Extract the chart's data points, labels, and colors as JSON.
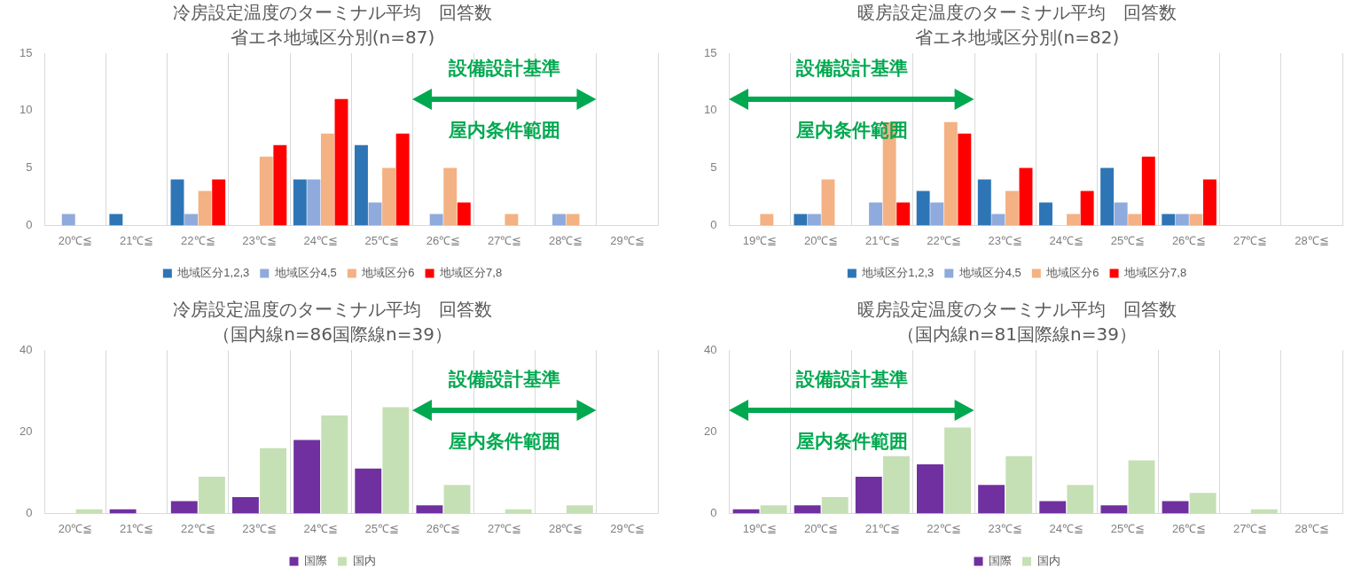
{
  "chart_data": [
    {
      "type": "bar",
      "title": "冷房設定温度のターミナル平均　回答数",
      "subtitle": "省エネ地域区分別(n=87)",
      "categories": [
        "20℃≦",
        "21℃≦",
        "22℃≦",
        "23℃≦",
        "24℃≦",
        "25℃≦",
        "26℃≦",
        "27℃≦",
        "28℃≦",
        "29℃≦"
      ],
      "series": [
        {
          "name": "地域区分1,2,3",
          "color": "#2e75b6",
          "values": [
            0,
            1,
            4,
            0,
            4,
            7,
            0,
            0,
            0,
            0
          ]
        },
        {
          "name": "地域区分4,5",
          "color": "#8faadc",
          "values": [
            1,
            0,
            1,
            0,
            4,
            2,
            1,
            0,
            1,
            0
          ]
        },
        {
          "name": "地域区分6",
          "color": "#f4b183",
          "values": [
            0,
            0,
            3,
            6,
            8,
            5,
            5,
            1,
            1,
            0
          ]
        },
        {
          "name": "地域区分7,8",
          "color": "#ff0000",
          "values": [
            0,
            0,
            4,
            7,
            11,
            8,
            2,
            0,
            0,
            0
          ]
        }
      ],
      "ylim": [
        0,
        15
      ],
      "yticks": [
        0,
        5,
        10,
        15
      ],
      "grid": "x",
      "legend": "bottom",
      "annotations": [
        "設備設計基準",
        "屋内条件範囲"
      ]
    },
    {
      "type": "bar",
      "title": "暖房設定温度のターミナル平均　回答数",
      "subtitle": "省エネ地域区分別(n=82)",
      "categories": [
        "19℃≦",
        "20℃≦",
        "21℃≦",
        "22℃≦",
        "23℃≦",
        "24℃≦",
        "25℃≦",
        "26℃≦",
        "27℃≦",
        "28℃≦"
      ],
      "series": [
        {
          "name": "地域区分1,2,3",
          "color": "#2e75b6",
          "values": [
            0,
            1,
            0,
            3,
            4,
            2,
            5,
            1,
            0,
            0
          ]
        },
        {
          "name": "地域区分4,5",
          "color": "#8faadc",
          "values": [
            0,
            1,
            2,
            2,
            1,
            0,
            2,
            1,
            0,
            0
          ]
        },
        {
          "name": "地域区分6",
          "color": "#f4b183",
          "values": [
            1,
            4,
            9,
            9,
            3,
            1,
            1,
            1,
            0,
            0
          ]
        },
        {
          "name": "地域区分7,8",
          "color": "#ff0000",
          "values": [
            0,
            0,
            2,
            8,
            5,
            3,
            6,
            4,
            0,
            0
          ]
        }
      ],
      "ylim": [
        0,
        15
      ],
      "yticks": [
        0,
        5,
        10,
        15
      ],
      "grid": "x",
      "legend": "bottom",
      "annotations": [
        "設備設計基準",
        "屋内条件範囲"
      ]
    },
    {
      "type": "bar",
      "title": "冷房設定温度のターミナル平均　回答数",
      "subtitle": "（国内線n=86国際線n=39）",
      "categories": [
        "20℃≦",
        "21℃≦",
        "22℃≦",
        "23℃≦",
        "24℃≦",
        "25℃≦",
        "26℃≦",
        "27℃≦",
        "28℃≦",
        "29℃≦"
      ],
      "series": [
        {
          "name": "国際",
          "color": "#7030a0",
          "values": [
            0,
            1,
            3,
            4,
            18,
            11,
            2,
            0,
            0,
            0
          ]
        },
        {
          "name": "国内",
          "color": "#c5e0b4",
          "values": [
            1,
            0,
            9,
            16,
            24,
            26,
            7,
            1,
            2,
            0
          ]
        }
      ],
      "ylim": [
        0,
        40
      ],
      "yticks": [
        0,
        20,
        40
      ],
      "grid": "x",
      "legend": "bottom",
      "annotations": [
        "設備設計基準",
        "屋内条件範囲"
      ]
    },
    {
      "type": "bar",
      "title": "暖房設定温度のターミナル平均　回答数",
      "subtitle": "（国内線n=81国際線n=39）",
      "categories": [
        "19℃≦",
        "20℃≦",
        "21℃≦",
        "22℃≦",
        "23℃≦",
        "24℃≦",
        "25℃≦",
        "26℃≦",
        "27℃≦",
        "28℃≦"
      ],
      "series": [
        {
          "name": "国際",
          "color": "#7030a0",
          "values": [
            1,
            2,
            9,
            12,
            7,
            3,
            2,
            3,
            0,
            0
          ]
        },
        {
          "name": "国内",
          "color": "#c5e0b4",
          "values": [
            2,
            4,
            14,
            21,
            14,
            7,
            13,
            5,
            1,
            0
          ]
        }
      ],
      "ylim": [
        0,
        40
      ],
      "yticks": [
        0,
        20,
        40
      ],
      "grid": "x",
      "legend": "bottom",
      "annotations": [
        "設備設計基準",
        "屋内条件範囲"
      ]
    }
  ]
}
